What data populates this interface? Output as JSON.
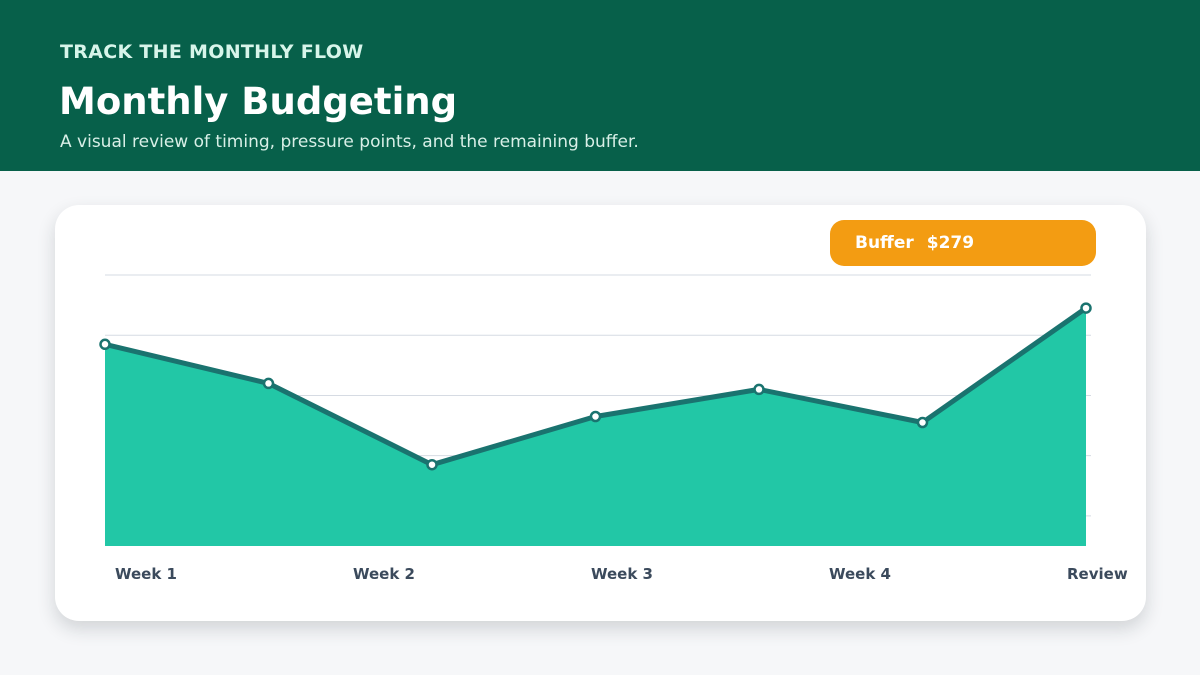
{
  "header": {
    "eyebrow": "TRACK THE MONTHLY FLOW",
    "title": "Monthly Budgeting",
    "subtitle": "A visual review of timing, pressure points, and the remaining buffer."
  },
  "buffer": {
    "label": "Buffer",
    "value": "$279"
  },
  "colors": {
    "header_bg": "#07604a",
    "area_fill": "#22c7a6",
    "line": "#1a736f",
    "badge": "#f39c12",
    "axis_label": "#3b4a5c",
    "grid": "#d6dbe3"
  },
  "chart_data": {
    "type": "area",
    "x": [
      1,
      2,
      3,
      4,
      5,
      6,
      7
    ],
    "values": [
      3.35,
      2.7,
      1.35,
      2.15,
      2.6,
      2.05,
      3.95
    ],
    "ylim": [
      0,
      4.5
    ],
    "x_tick_positions": [
      1,
      2.5,
      4,
      5.5,
      7
    ],
    "x_tick_labels": [
      "Week 1",
      "Week 2",
      "Week 3",
      "Week 4",
      "Review"
    ],
    "grid": true,
    "markers": true
  }
}
